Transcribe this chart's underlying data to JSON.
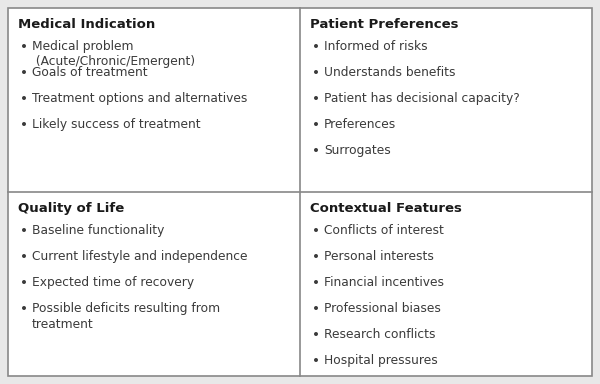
{
  "bg_color": "#e8e8e8",
  "box_bg": "#ffffff",
  "border_color": "#888888",
  "title_color": "#1a1a1a",
  "bullet_color": "#3a3a3a",
  "title_fontsize": 9.5,
  "bullet_fontsize": 8.8,
  "figsize": [
    6.0,
    3.84
  ],
  "dpi": 100,
  "boxes": [
    {
      "title": "Medical Indication",
      "bullets": [
        "Medical problem\n (Acute/Chronic/Emergent)",
        "Goals of treatment",
        "Treatment options and alternatives",
        "Likely success of treatment"
      ],
      "col": 0,
      "row": 0
    },
    {
      "title": "Patient Preferences",
      "bullets": [
        "Informed of risks",
        "Understands benefits",
        "Patient has decisional capacity?",
        "Preferences",
        "Surrogates"
      ],
      "col": 1,
      "row": 0
    },
    {
      "title": "Quality of Life",
      "bullets": [
        "Baseline functionality",
        "Current lifestyle and independence",
        "Expected time of recovery",
        "Possible deficits resulting from\ntreatment"
      ],
      "col": 0,
      "row": 1
    },
    {
      "title": "Contextual Features",
      "bullets": [
        "Conflicts of interest",
        "Personal interests",
        "Financial incentives",
        "Professional biases",
        "Research conflicts",
        "Hospital pressures"
      ],
      "col": 1,
      "row": 1
    }
  ]
}
